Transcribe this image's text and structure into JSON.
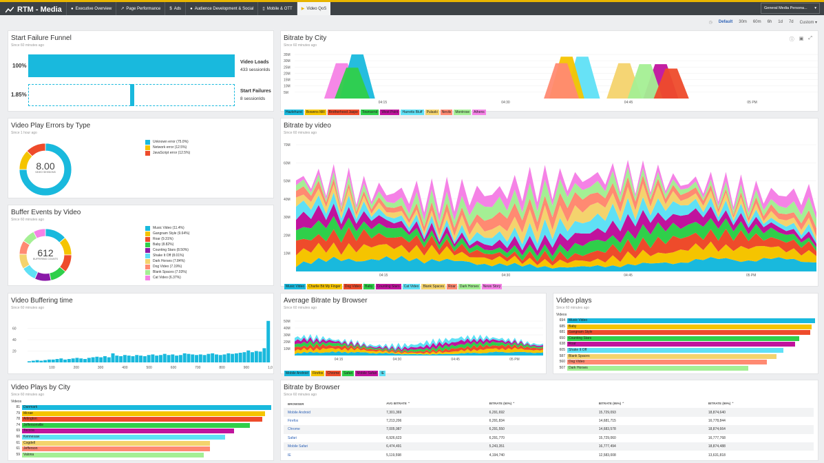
{
  "app": {
    "title": "RTM - Media"
  },
  "nav": {
    "tabs": [
      {
        "label": "Executive Overview"
      },
      {
        "label": "Page Performance"
      },
      {
        "label": "Ads"
      },
      {
        "label": "Audience Development & Social"
      },
      {
        "label": "Mobile & OTT"
      },
      {
        "label": "Video QoS"
      }
    ],
    "active": 5
  },
  "account": {
    "label": "General Media Persona..."
  },
  "timepicker": {
    "options": [
      "Default",
      "30m",
      "60m",
      "6h",
      "1d",
      "7d",
      "Custom"
    ]
  },
  "funnel": {
    "title": "Start Failure Funnel",
    "subtitle": "Since 60 minutes ago",
    "rows": [
      {
        "pct": "100%",
        "name": "Video Loads",
        "count": "433 sessionIds",
        "value": 1.0
      },
      {
        "pct": "1.85%",
        "name": "Start Failures",
        "count": "8 sessionIds",
        "value": 0.0185
      }
    ]
  },
  "errors": {
    "title": "Video Play Errors by Type",
    "subtitle": "Since 1 hour ago",
    "center_value": "8.00",
    "center_label": "VIDEO SESSIONS",
    "items": [
      {
        "label": "Unknown error (75.0%)",
        "value": 75.0,
        "color": "#19b9dd"
      },
      {
        "label": "Network error (12.5%)",
        "value": 12.5,
        "color": "#f5c400"
      },
      {
        "label": "JavaScript error (12.5%)",
        "value": 12.5,
        "color": "#ee4b2b"
      }
    ]
  },
  "buffer": {
    "title": "Buffer Events by Video",
    "subtitle": "Since 60 minutes ago",
    "center_value": "612",
    "center_label": "BUFFERING COUNTS",
    "items": [
      {
        "label": "Music Video (11.4%)",
        "value": 11.4,
        "color": "#19b9dd"
      },
      {
        "label": "Gangnam Style (9.64%)",
        "value": 9.64,
        "color": "#f5c400"
      },
      {
        "label": "Roar (9.31%)",
        "value": 9.31,
        "color": "#ee4b2b"
      },
      {
        "label": "Baby (8.82%)",
        "value": 8.82,
        "color": "#2fcf4a"
      },
      {
        "label": "Counting Stars (8.50%)",
        "value": 8.5,
        "color": "#8a1aa8"
      },
      {
        "label": "Shake It Off (8.01%)",
        "value": 8.01,
        "color": "#5fe0f5"
      },
      {
        "label": "Dark Horses (7.84%)",
        "value": 7.84,
        "color": "#f4d36d"
      },
      {
        "label": "Dog Video (7.19%)",
        "value": 7.19,
        "color": "#ff8a72"
      },
      {
        "label": "Blank Spaces (7.03%)",
        "value": 7.03,
        "color": "#a4ef94"
      },
      {
        "label": "Cat Video (6.37%)",
        "value": 6.37,
        "color": "#f582e6"
      }
    ]
  },
  "buffering_time": {
    "title": "Video Buffering time",
    "subtitle": "Since 60 minutes ago",
    "chart_data": {
      "type": "bar",
      "yticks": [
        "60",
        "40",
        "20"
      ],
      "xticks": [
        "100",
        "200",
        "300",
        "400",
        "500",
        "600",
        "700",
        "800",
        "900",
        "1,0"
      ],
      "ylim": [
        0,
        80
      ],
      "values": [
        2,
        3,
        4,
        3,
        4,
        5,
        5,
        6,
        7,
        5,
        6,
        7,
        8,
        7,
        6,
        8,
        9,
        10,
        9,
        11,
        9,
        16,
        12,
        11,
        13,
        12,
        11,
        13,
        12,
        11,
        13,
        14,
        12,
        13,
        15,
        13,
        14,
        12,
        13,
        16,
        15,
        14,
        13,
        14,
        13,
        15,
        16,
        14,
        13,
        14,
        16,
        15,
        16,
        17,
        18,
        21,
        18,
        20,
        19,
        25,
        73
      ]
    }
  },
  "city": {
    "title": "Bitrate by City",
    "subtitle": "Since 60 minutes ago",
    "chart_data": {
      "type": "area",
      "yticks": [
        "35M",
        "30M",
        "25M",
        "20M",
        "15M",
        "10M",
        "5M"
      ],
      "xticks": [
        "04:15",
        "04:30",
        "04:45",
        "05 PM"
      ],
      "series": [
        {
          "name": "Hazlehurst",
          "color": "#19b9dd"
        },
        {
          "name": "Bowens Mill",
          "color": "#f5c400"
        },
        {
          "name": "Brotherhood Jaspe",
          "color": "#ee4b2b"
        },
        {
          "name": "Townsend",
          "color": "#2fcf4a"
        },
        {
          "name": "West Point",
          "color": "#c0139d"
        },
        {
          "name": "Harretts Bluff",
          "color": "#5fe0f5"
        },
        {
          "name": "Pulaski",
          "color": "#f4d36d"
        },
        {
          "name": "Nevils",
          "color": "#ff8a72"
        },
        {
          "name": "Montrose",
          "color": "#a4ef94"
        },
        {
          "name": "Athens",
          "color": "#f582e6"
        }
      ]
    }
  },
  "video": {
    "title": "Bitrate by video",
    "subtitle": "Since 60 minutes ago",
    "chart_data": {
      "type": "area",
      "yticks": [
        "70M",
        "60M",
        "50M",
        "40M",
        "30M",
        "20M",
        "10M"
      ],
      "xticks": [
        "04:15",
        "04:30",
        "04:45",
        "05 PM"
      ],
      "series": [
        {
          "name": "Music Video",
          "color": "#19b9dd"
        },
        {
          "name": "Charlie Bit My Finger",
          "color": "#f5c400"
        },
        {
          "name": "Dog Video",
          "color": "#ee4b2b"
        },
        {
          "name": "Baby",
          "color": "#2fcf4a"
        },
        {
          "name": "Counting Stars",
          "color": "#c0139d"
        },
        {
          "name": "Cat Video",
          "color": "#5fe0f5"
        },
        {
          "name": "Blank Spaces",
          "color": "#f4d36d"
        },
        {
          "name": "Roar",
          "color": "#ff8a72"
        },
        {
          "name": "Dark Horses",
          "color": "#a4ef94"
        },
        {
          "name": "News Story",
          "color": "#f582e6"
        }
      ]
    }
  },
  "browser_avg": {
    "title": "Average Bitrate by Browser",
    "subtitle": "Since 60 minutes ago",
    "chart_data": {
      "type": "area",
      "yticks": [
        "50M",
        "40M",
        "30M",
        "20M",
        "10M"
      ],
      "xticks": [
        "04:15",
        "04:30",
        "04:45",
        "05 PM"
      ],
      "series": [
        {
          "name": "Mobile Android",
          "color": "#19b9dd"
        },
        {
          "name": "Firefox",
          "color": "#f5c400"
        },
        {
          "name": "Chrome",
          "color": "#ee4b2b"
        },
        {
          "name": "Safari",
          "color": "#2fcf4a"
        },
        {
          "name": "Mobile Safari",
          "color": "#c0139d"
        },
        {
          "name": "IE",
          "color": "#5fe0f5"
        }
      ]
    }
  },
  "plays": {
    "title": "Video plays",
    "subtitle": "Since 60 minutes ago",
    "axis": "Videos",
    "max": 694,
    "rows": [
      {
        "count": 694,
        "label": "Music Video",
        "color": "#19b9dd"
      },
      {
        "count": 685,
        "label": "Baby",
        "color": "#f5c400"
      },
      {
        "count": 681,
        "label": "Gangnam Style",
        "color": "#ee4b2b"
      },
      {
        "count": 650,
        "label": "Counting Stars",
        "color": "#2fcf4a"
      },
      {
        "count": 638,
        "label": "Roar",
        "color": "#c0139d"
      },
      {
        "count": 605,
        "label": "Shake It Off",
        "color": "#5fe0f5"
      },
      {
        "count": 587,
        "label": "Blank Spaces",
        "color": "#f4d36d"
      },
      {
        "count": 560,
        "label": "Dog Video",
        "color": "#ff8a72"
      },
      {
        "count": 507,
        "label": "Dark Horses",
        "color": "#a4ef94"
      }
    ]
  },
  "city_plays": {
    "title": "Video Plays by City",
    "subtitle": "Since 60 minutes ago",
    "axis": "Videos",
    "max": 81,
    "rows": [
      {
        "count": 81,
        "label": "Danmark",
        "color": "#19b9dd"
      },
      {
        "count": 79,
        "label": "Mcrae",
        "color": "#f5c400"
      },
      {
        "count": 78,
        "label": "Arlington",
        "color": "#ee4b2b"
      },
      {
        "count": 74,
        "label": "Jeffersonville",
        "color": "#2fcf4a"
      },
      {
        "count": 69,
        "label": "Toccoa",
        "color": "#c0139d"
      },
      {
        "count": 66,
        "label": "Kennesaw",
        "color": "#5fe0f5"
      },
      {
        "count": 61,
        "label": "Cogdell",
        "color": "#f4d36d"
      },
      {
        "count": 61,
        "label": "Jefferson",
        "color": "#ff8a72"
      },
      {
        "count": 59,
        "label": "Valona",
        "color": "#a4ef94"
      }
    ]
  },
  "table": {
    "title": "Bitrate by Browser",
    "subtitle": "Since 60 minutes ago",
    "headers": [
      "BROWSER",
      "AVG BITRATE",
      "BITRATE (50%)",
      "BITRATE (95%)",
      "BITRATE (99%)"
    ],
    "rows": [
      [
        "Mobile Android",
        "7,301,369",
        "6,291,692",
        "15,729,093",
        "18,874,640"
      ],
      [
        "Firefox",
        "7,213,206",
        "6,291,834",
        "14,681,715",
        "16,778,844"
      ],
      [
        "Chrome",
        "7,005,987",
        "6,291,550",
        "14,683,578",
        "18,874,664"
      ],
      [
        "Safari",
        "6,926,623",
        "6,291,770",
        "15,729,060",
        "16,777,768"
      ],
      [
        "Mobile Safari",
        "6,474,491",
        "5,243,351",
        "16,777,494",
        "18,874,488"
      ],
      [
        "IE",
        "5,119,598",
        "4,194,740",
        "12,583,008",
        "13,631,818"
      ]
    ]
  }
}
